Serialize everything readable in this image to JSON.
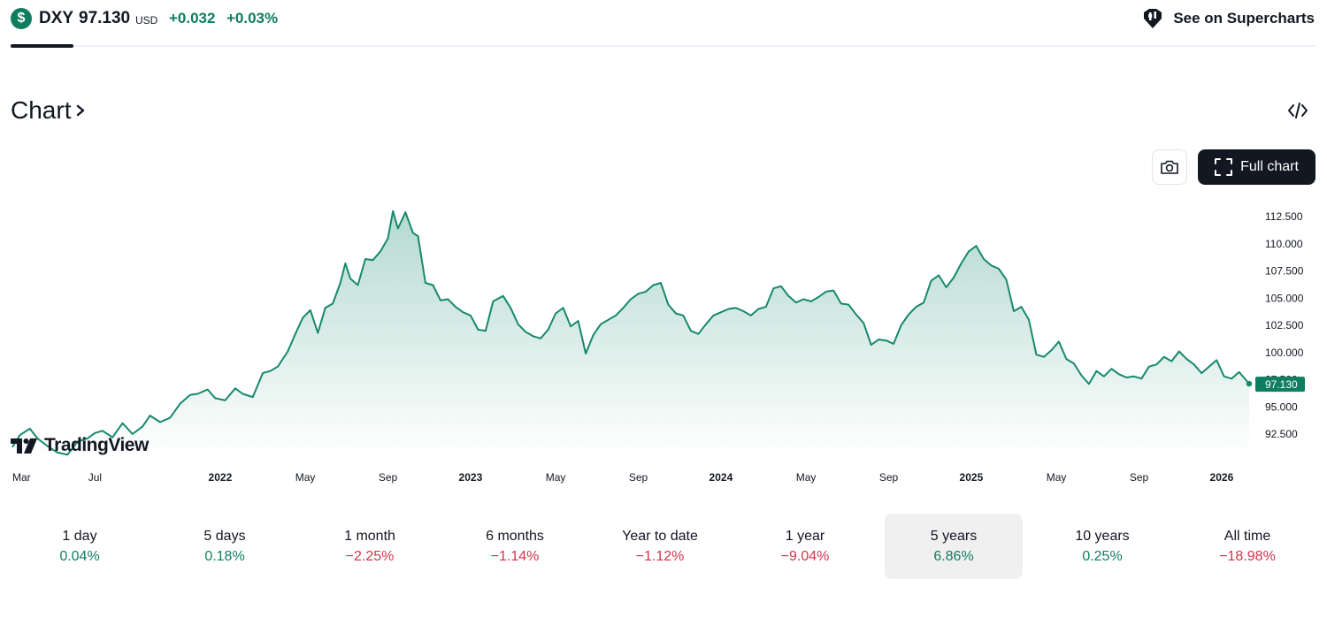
{
  "header": {
    "symbol": "DXY",
    "symbol_icon": "$",
    "price": "97.130",
    "currency": "USD",
    "change": "+0.032",
    "change_percent": "+0.03%",
    "supercharts_label": "See on Supercharts"
  },
  "chart_section": {
    "title": "Chart",
    "full_chart_label": "Full chart",
    "logo_text": "TradingView"
  },
  "colors": {
    "accent_green": "#0f7d5f",
    "line": "#16896b",
    "negative_red": "#d1344b",
    "dark": "#131722"
  },
  "chart_data": {
    "type": "area",
    "title": "DXY",
    "range": "5 years",
    "current_value": 97.13,
    "current_label": "97.130",
    "ylim": [
      90.5,
      114.0
    ],
    "y_ticks": [
      {
        "value": 112.5,
        "label": "112.500"
      },
      {
        "value": 110.0,
        "label": "110.000"
      },
      {
        "value": 107.5,
        "label": "107.500"
      },
      {
        "value": 105.0,
        "label": "105.000"
      },
      {
        "value": 102.5,
        "label": "102.500"
      },
      {
        "value": 100.0,
        "label": "100.000"
      },
      {
        "value": 97.5,
        "label": "97.500"
      },
      {
        "value": 95.0,
        "label": "95.000"
      },
      {
        "value": 92.5,
        "label": "92.500"
      }
    ],
    "x_range": [
      2021.17,
      2026.11
    ],
    "x_ticks": [
      {
        "t": 2021.17,
        "label": "Mar",
        "bold": false
      },
      {
        "t": 2021.5,
        "label": "Jul",
        "bold": false
      },
      {
        "t": 2022.0,
        "label": "2022",
        "bold": true
      },
      {
        "t": 2022.34,
        "label": "May",
        "bold": false
      },
      {
        "t": 2022.67,
        "label": "Sep",
        "bold": false
      },
      {
        "t": 2023.0,
        "label": "2023",
        "bold": true
      },
      {
        "t": 2023.34,
        "label": "May",
        "bold": false
      },
      {
        "t": 2023.67,
        "label": "Sep",
        "bold": false
      },
      {
        "t": 2024.0,
        "label": "2024",
        "bold": true
      },
      {
        "t": 2024.34,
        "label": "May",
        "bold": false
      },
      {
        "t": 2024.67,
        "label": "Sep",
        "bold": false
      },
      {
        "t": 2025.0,
        "label": "2025",
        "bold": true
      },
      {
        "t": 2025.34,
        "label": "May",
        "bold": false
      },
      {
        "t": 2025.67,
        "label": "Sep",
        "bold": false
      },
      {
        "t": 2026.0,
        "label": "2026",
        "bold": true
      }
    ],
    "points": [
      [
        2021.17,
        91.3
      ],
      [
        2021.2,
        92.4
      ],
      [
        2021.24,
        93.0
      ],
      [
        2021.27,
        92.1
      ],
      [
        2021.31,
        91.4
      ],
      [
        2021.35,
        90.8
      ],
      [
        2021.39,
        90.6
      ],
      [
        2021.43,
        91.8
      ],
      [
        2021.47,
        92.1
      ],
      [
        2021.5,
        92.6
      ],
      [
        2021.53,
        92.8
      ],
      [
        2021.57,
        92.2
      ],
      [
        2021.61,
        93.5
      ],
      [
        2021.65,
        92.5
      ],
      [
        2021.69,
        93.2
      ],
      [
        2021.72,
        94.2
      ],
      [
        2021.76,
        93.6
      ],
      [
        2021.8,
        94.0
      ],
      [
        2021.84,
        95.3
      ],
      [
        2021.88,
        96.1
      ],
      [
        2021.91,
        96.2
      ],
      [
        2021.95,
        96.6
      ],
      [
        2021.98,
        95.8
      ],
      [
        2022.02,
        95.6
      ],
      [
        2022.06,
        96.7
      ],
      [
        2022.09,
        96.2
      ],
      [
        2022.13,
        95.9
      ],
      [
        2022.17,
        98.1
      ],
      [
        2022.2,
        98.3
      ],
      [
        2022.23,
        98.7
      ],
      [
        2022.27,
        100.1
      ],
      [
        2022.3,
        101.7
      ],
      [
        2022.33,
        103.2
      ],
      [
        2022.36,
        103.9
      ],
      [
        2022.39,
        101.8
      ],
      [
        2022.42,
        104.1
      ],
      [
        2022.45,
        104.5
      ],
      [
        2022.48,
        106.4
      ],
      [
        2022.5,
        108.2
      ],
      [
        2022.52,
        106.8
      ],
      [
        2022.55,
        106.2
      ],
      [
        2022.58,
        108.6
      ],
      [
        2022.61,
        108.5
      ],
      [
        2022.64,
        109.3
      ],
      [
        2022.67,
        110.5
      ],
      [
        2022.69,
        113.0
      ],
      [
        2022.71,
        111.4
      ],
      [
        2022.74,
        112.9
      ],
      [
        2022.77,
        111.0
      ],
      [
        2022.79,
        110.7
      ],
      [
        2022.82,
        106.4
      ],
      [
        2022.85,
        106.2
      ],
      [
        2022.88,
        104.8
      ],
      [
        2022.91,
        104.9
      ],
      [
        2022.94,
        104.2
      ],
      [
        2022.97,
        103.7
      ],
      [
        2023.0,
        103.4
      ],
      [
        2023.03,
        102.1
      ],
      [
        2023.06,
        102.0
      ],
      [
        2023.09,
        104.7
      ],
      [
        2023.13,
        105.2
      ],
      [
        2023.16,
        104.1
      ],
      [
        2023.19,
        102.6
      ],
      [
        2023.22,
        101.9
      ],
      [
        2023.25,
        101.5
      ],
      [
        2023.28,
        101.3
      ],
      [
        2023.31,
        102.1
      ],
      [
        2023.34,
        103.6
      ],
      [
        2023.37,
        104.1
      ],
      [
        2023.4,
        102.4
      ],
      [
        2023.43,
        102.9
      ],
      [
        2023.46,
        99.9
      ],
      [
        2023.49,
        101.6
      ],
      [
        2023.52,
        102.6
      ],
      [
        2023.55,
        103.0
      ],
      [
        2023.58,
        103.4
      ],
      [
        2023.61,
        104.1
      ],
      [
        2023.64,
        104.9
      ],
      [
        2023.67,
        105.4
      ],
      [
        2023.7,
        105.6
      ],
      [
        2023.73,
        106.2
      ],
      [
        2023.76,
        106.4
      ],
      [
        2023.79,
        104.4
      ],
      [
        2023.82,
        103.6
      ],
      [
        2023.85,
        103.4
      ],
      [
        2023.88,
        102.0
      ],
      [
        2023.91,
        101.7
      ],
      [
        2023.94,
        102.6
      ],
      [
        2023.97,
        103.4
      ],
      [
        2024.0,
        103.7
      ],
      [
        2024.03,
        104.0
      ],
      [
        2024.06,
        104.1
      ],
      [
        2024.09,
        103.8
      ],
      [
        2024.12,
        103.4
      ],
      [
        2024.15,
        104.0
      ],
      [
        2024.18,
        104.2
      ],
      [
        2024.21,
        105.9
      ],
      [
        2024.24,
        106.1
      ],
      [
        2024.27,
        105.2
      ],
      [
        2024.3,
        104.6
      ],
      [
        2024.33,
        104.9
      ],
      [
        2024.36,
        104.7
      ],
      [
        2024.39,
        105.1
      ],
      [
        2024.42,
        105.6
      ],
      [
        2024.45,
        105.7
      ],
      [
        2024.48,
        104.5
      ],
      [
        2024.51,
        104.4
      ],
      [
        2024.54,
        103.5
      ],
      [
        2024.57,
        102.7
      ],
      [
        2024.6,
        100.7
      ],
      [
        2024.63,
        101.2
      ],
      [
        2024.66,
        101.1
      ],
      [
        2024.69,
        100.8
      ],
      [
        2024.72,
        102.5
      ],
      [
        2024.75,
        103.5
      ],
      [
        2024.78,
        104.2
      ],
      [
        2024.81,
        104.6
      ],
      [
        2024.84,
        106.6
      ],
      [
        2024.87,
        107.1
      ],
      [
        2024.9,
        106.0
      ],
      [
        2024.93,
        106.9
      ],
      [
        2024.96,
        108.2
      ],
      [
        2024.99,
        109.3
      ],
      [
        2025.02,
        109.8
      ],
      [
        2025.05,
        108.6
      ],
      [
        2025.08,
        108.0
      ],
      [
        2025.11,
        107.7
      ],
      [
        2025.14,
        106.7
      ],
      [
        2025.17,
        103.8
      ],
      [
        2025.2,
        104.2
      ],
      [
        2025.23,
        103.0
      ],
      [
        2025.26,
        99.8
      ],
      [
        2025.29,
        99.6
      ],
      [
        2025.32,
        100.2
      ],
      [
        2025.35,
        101.0
      ],
      [
        2025.38,
        99.4
      ],
      [
        2025.41,
        99.0
      ],
      [
        2025.44,
        97.9
      ],
      [
        2025.47,
        97.1
      ],
      [
        2025.5,
        98.3
      ],
      [
        2025.53,
        97.8
      ],
      [
        2025.56,
        98.5
      ],
      [
        2025.59,
        98.0
      ],
      [
        2025.62,
        97.7
      ],
      [
        2025.65,
        97.8
      ],
      [
        2025.68,
        97.6
      ],
      [
        2025.71,
        98.7
      ],
      [
        2025.74,
        98.9
      ],
      [
        2025.77,
        99.6
      ],
      [
        2025.8,
        99.2
      ],
      [
        2025.83,
        100.1
      ],
      [
        2025.86,
        99.4
      ],
      [
        2025.89,
        98.9
      ],
      [
        2025.92,
        98.1
      ],
      [
        2025.95,
        98.7
      ],
      [
        2025.98,
        99.3
      ],
      [
        2026.01,
        97.8
      ],
      [
        2026.04,
        97.6
      ],
      [
        2026.07,
        98.2
      ],
      [
        2026.11,
        97.13
      ]
    ]
  },
  "periods": [
    {
      "label": "1 day",
      "value": "0.04%",
      "sign": "pos",
      "active": false
    },
    {
      "label": "5 days",
      "value": "0.18%",
      "sign": "pos",
      "active": false
    },
    {
      "label": "1 month",
      "value": "−2.25%",
      "sign": "neg",
      "active": false
    },
    {
      "label": "6 months",
      "value": "−1.14%",
      "sign": "neg",
      "active": false
    },
    {
      "label": "Year to date",
      "value": "−1.12%",
      "sign": "neg",
      "active": false
    },
    {
      "label": "1 year",
      "value": "−9.04%",
      "sign": "neg",
      "active": false
    },
    {
      "label": "5 years",
      "value": "6.86%",
      "sign": "pos",
      "active": true
    },
    {
      "label": "10 years",
      "value": "0.25%",
      "sign": "pos",
      "active": false
    },
    {
      "label": "All time",
      "value": "−18.98%",
      "sign": "neg",
      "active": false
    }
  ]
}
